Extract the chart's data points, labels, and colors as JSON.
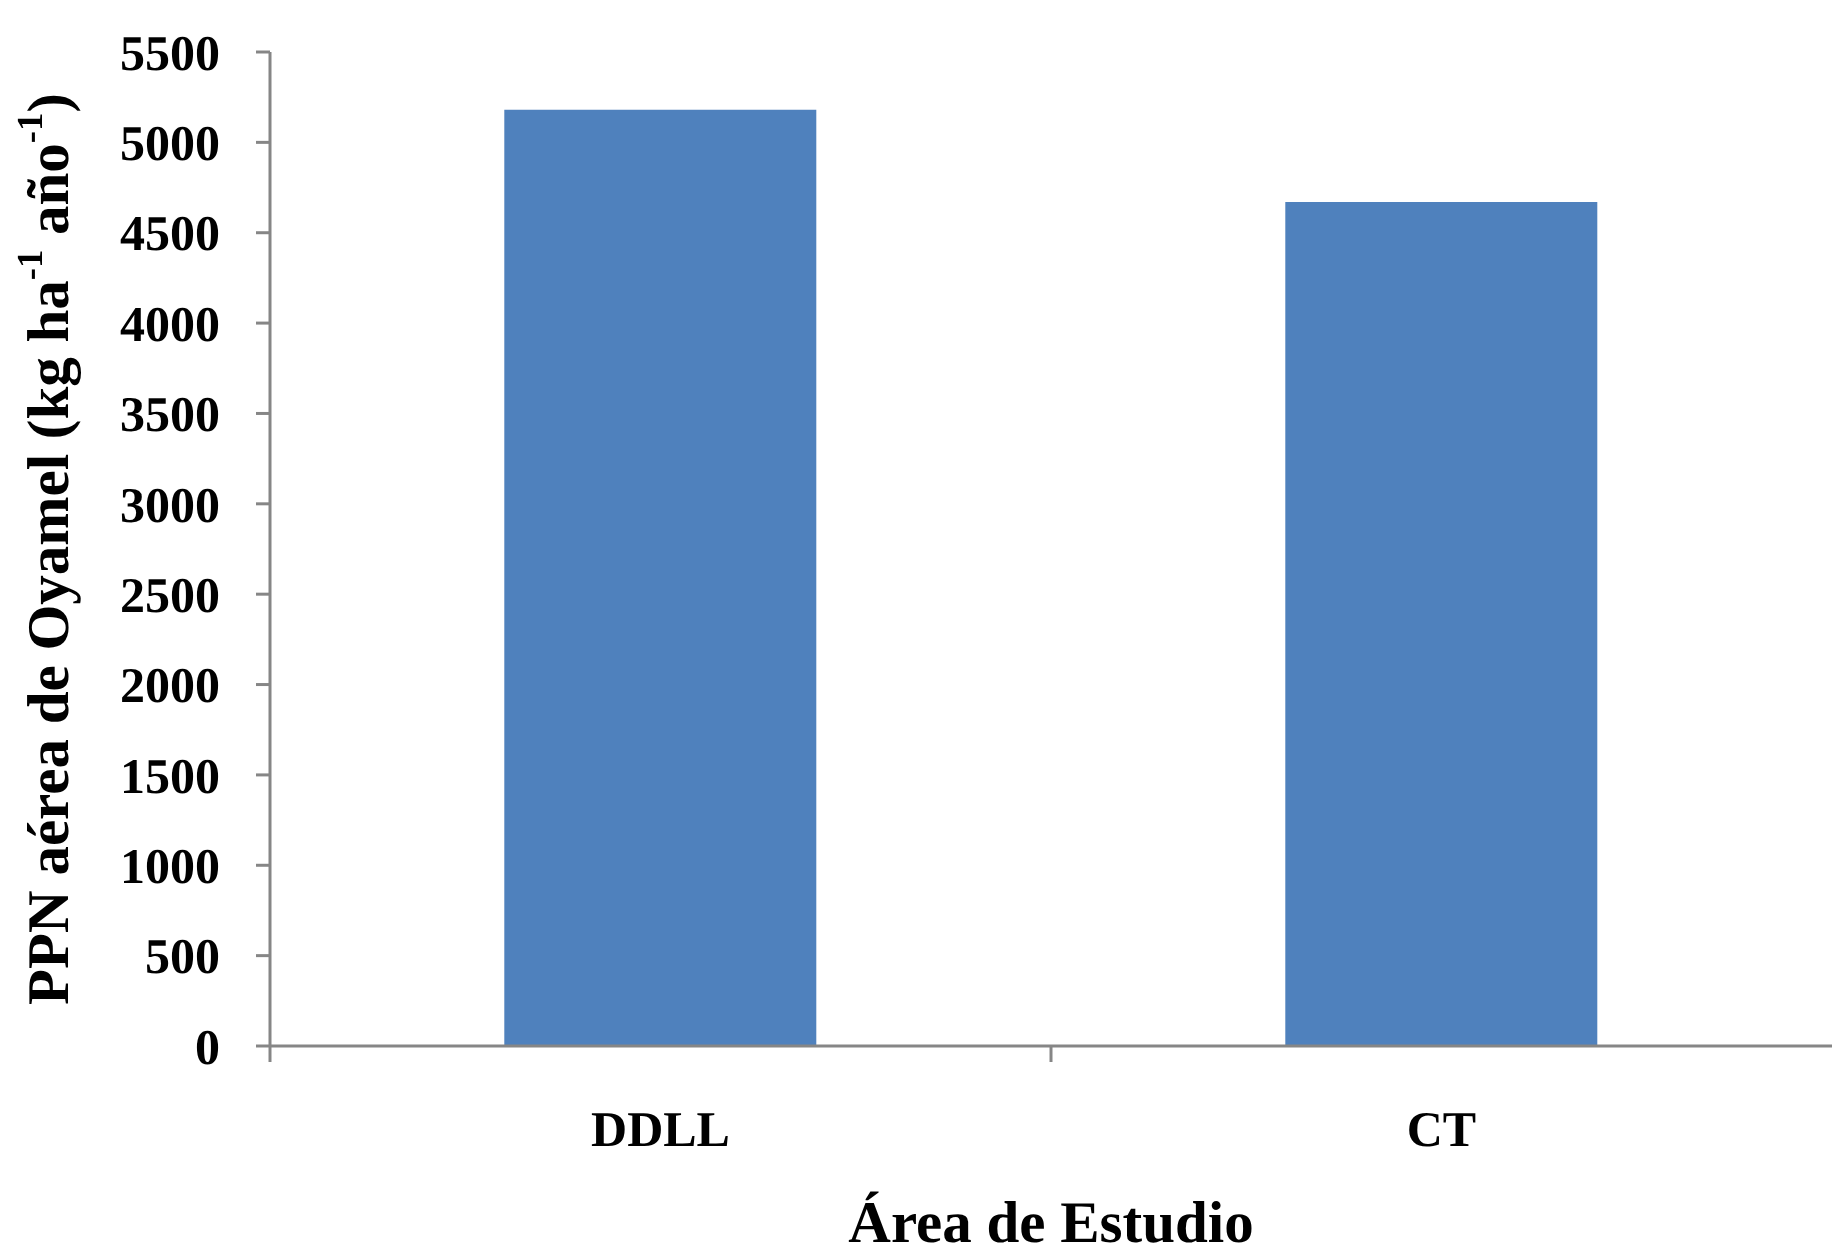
{
  "chart_data": {
    "type": "bar",
    "xlabel": "Área de Estudio",
    "ylabel": "PPN aérea de Oyamel (kg ha$^{-1}$ año$^{-1}$)",
    "categories": [
      "DDLL",
      "CT"
    ],
    "values": [
      5180,
      4670
    ],
    "color": "#4f81bd",
    "ylim": [
      0,
      5500
    ],
    "yticks": [
      0,
      500,
      1000,
      1500,
      2000,
      2500,
      3000,
      3500,
      4000,
      4500,
      5000,
      5500
    ]
  }
}
